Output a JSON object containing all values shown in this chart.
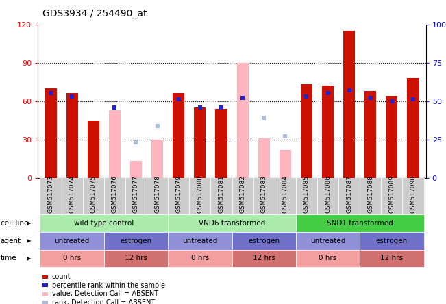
{
  "title": "GDS3934 / 254490_at",
  "samples": [
    "GSM517073",
    "GSM517074",
    "GSM517075",
    "GSM517076",
    "GSM517077",
    "GSM517078",
    "GSM517079",
    "GSM517080",
    "GSM517081",
    "GSM517082",
    "GSM517083",
    "GSM517084",
    "GSM517085",
    "GSM517086",
    "GSM517087",
    "GSM517088",
    "GSM517089",
    "GSM517090"
  ],
  "count_values": [
    70,
    66,
    45,
    null,
    null,
    null,
    66,
    55,
    54,
    null,
    null,
    null,
    73,
    72,
    115,
    68,
    64,
    78
  ],
  "count_absent": [
    null,
    null,
    null,
    53,
    13,
    30,
    null,
    null,
    null,
    90,
    31,
    22,
    null,
    null,
    null,
    null,
    null,
    null
  ],
  "rank_values": [
    55,
    53,
    null,
    46,
    null,
    null,
    51,
    46,
    46,
    52,
    null,
    null,
    53,
    55,
    57,
    52,
    50,
    51
  ],
  "rank_absent": [
    null,
    null,
    null,
    null,
    23,
    34,
    null,
    null,
    null,
    null,
    39,
    27,
    null,
    null,
    null,
    null,
    null,
    null
  ],
  "ylim_left": [
    0,
    120
  ],
  "ylim_right": [
    0,
    100
  ],
  "yticks_left": [
    0,
    30,
    60,
    90,
    120
  ],
  "yticks_right": [
    0,
    25,
    50,
    75,
    100
  ],
  "ytick_labels_left": [
    "0",
    "30",
    "60",
    "90",
    "120"
  ],
  "ytick_labels_right": [
    "0",
    "25",
    "50",
    "75",
    "100%"
  ],
  "cell_line_groups": [
    {
      "label": "wild type control",
      "start": 0,
      "end": 6,
      "color": "#AAEAAA"
    },
    {
      "label": "VND6 transformed",
      "start": 6,
      "end": 12,
      "color": "#AAEAAA"
    },
    {
      "label": "SND1 transformed",
      "start": 12,
      "end": 18,
      "color": "#44CC44"
    }
  ],
  "agent_groups": [
    {
      "label": "untreated",
      "start": 0,
      "end": 3,
      "color": "#9090D8"
    },
    {
      "label": "estrogen",
      "start": 3,
      "end": 6,
      "color": "#7070C8"
    },
    {
      "label": "untreated",
      "start": 6,
      "end": 9,
      "color": "#9090D8"
    },
    {
      "label": "estrogen",
      "start": 9,
      "end": 12,
      "color": "#7070C8"
    },
    {
      "label": "untreated",
      "start": 12,
      "end": 15,
      "color": "#9090D8"
    },
    {
      "label": "estrogen",
      "start": 15,
      "end": 18,
      "color": "#7070C8"
    }
  ],
  "time_groups": [
    {
      "label": "0 hrs",
      "start": 0,
      "end": 3,
      "color": "#F4A0A0"
    },
    {
      "label": "12 hrs",
      "start": 3,
      "end": 6,
      "color": "#D07070"
    },
    {
      "label": "0 hrs",
      "start": 6,
      "end": 9,
      "color": "#F4A0A0"
    },
    {
      "label": "12 hrs",
      "start": 9,
      "end": 12,
      "color": "#D07070"
    },
    {
      "label": "0 hrs",
      "start": 12,
      "end": 15,
      "color": "#F4A0A0"
    },
    {
      "label": "12 hrs",
      "start": 15,
      "end": 18,
      "color": "#D07070"
    }
  ],
  "bar_color_count": "#CC1100",
  "bar_color_rank": "#2222CC",
  "bar_color_count_absent": "#FFB6C1",
  "bar_color_rank_absent": "#AABBDD",
  "legend_items": [
    {
      "color": "#CC1100",
      "label": "count"
    },
    {
      "color": "#2222CC",
      "label": "percentile rank within the sample"
    },
    {
      "color": "#FFB6C1",
      "label": "value, Detection Call = ABSENT"
    },
    {
      "color": "#AABBDD",
      "label": "rank, Detection Call = ABSENT"
    }
  ],
  "bar_width": 0.55,
  "rank_square_size": 7
}
